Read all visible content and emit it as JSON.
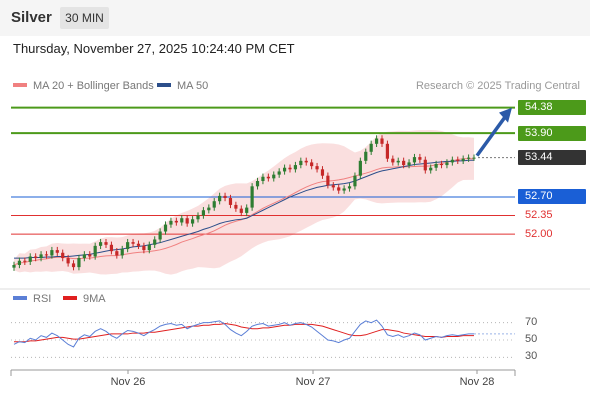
{
  "instrument": "Silver",
  "timeframe": "30 MIN",
  "timestamp": "Thursday, November 27, 2025 10:24:40 PM CET",
  "credit": "Research © 2025 Trading Central",
  "legend": {
    "ma20": {
      "label": "MA 20 + Bollinger Bands",
      "color": "#f08080"
    },
    "ma50": {
      "label": "MA 50",
      "color": "#2c4e8a"
    },
    "rsi": {
      "label": "RSI",
      "color": "#5b7fd6"
    },
    "rsi9": {
      "label": "9MA",
      "color": "#e02020"
    }
  },
  "chart_data": [
    {
      "type": "candlestick",
      "x_ticks": [
        "Nov 26",
        "Nov 27",
        "Nov 28"
      ],
      "ylim": [
        51.1,
        54.75
      ],
      "current_price": 53.44,
      "target_arrow_to": 54.38,
      "levels": [
        {
          "value": 54.38,
          "label": "54.38",
          "color": "#4c9a1a",
          "style": "green"
        },
        {
          "value": 53.9,
          "label": "53.90",
          "color": "#4c9a1a",
          "style": "green"
        },
        {
          "value": 53.44,
          "label": "53.44",
          "color": "#333333",
          "style": "current"
        },
        {
          "value": 52.7,
          "label": "52.70",
          "color": "#1a5fd6",
          "style": "blue"
        },
        {
          "value": 52.35,
          "label": "52.35",
          "color": "#e03030",
          "style": "red"
        },
        {
          "value": 52.0,
          "label": "52.00",
          "color": "#e03030",
          "style": "red"
        }
      ],
      "closes": [
        51.42,
        51.5,
        51.48,
        51.58,
        51.55,
        51.62,
        51.6,
        51.7,
        51.65,
        51.55,
        51.45,
        51.38,
        51.55,
        51.62,
        51.58,
        51.78,
        51.85,
        51.8,
        51.68,
        51.6,
        51.72,
        51.85,
        51.82,
        51.78,
        51.7,
        51.8,
        51.9,
        52.05,
        52.18,
        52.25,
        52.22,
        52.3,
        52.2,
        52.28,
        52.35,
        52.45,
        52.5,
        52.62,
        52.72,
        52.68,
        52.55,
        52.48,
        52.4,
        52.5,
        52.9,
        53.0,
        53.08,
        53.05,
        53.12,
        53.18,
        53.25,
        53.22,
        53.3,
        53.38,
        53.35,
        53.28,
        53.22,
        53.1,
        52.92,
        52.88,
        52.82,
        52.86,
        52.9,
        53.1,
        53.38,
        53.55,
        53.7,
        53.8,
        53.7,
        53.42,
        53.35,
        53.38,
        53.3,
        53.35,
        53.45,
        53.4,
        53.2,
        53.25,
        53.32,
        53.3,
        53.35,
        53.4,
        53.38,
        53.42,
        53.44,
        53.44
      ],
      "ma50": [
        51.55,
        51.55,
        51.55,
        51.56,
        51.56,
        51.56,
        51.57,
        51.57,
        51.58,
        51.58,
        51.58,
        51.59,
        51.6,
        51.61,
        51.62,
        51.64,
        51.66,
        51.68,
        51.7,
        51.71,
        51.72,
        51.74,
        51.76,
        51.77,
        51.78,
        51.8,
        51.82,
        51.84,
        51.87,
        51.9,
        51.93,
        51.96,
        51.99,
        52.02,
        52.05,
        52.09,
        52.12,
        52.16,
        52.2,
        52.23,
        52.25,
        52.27,
        52.28,
        52.3,
        52.35,
        52.4,
        52.45,
        52.5,
        52.55,
        52.6,
        52.65,
        52.7,
        52.74,
        52.78,
        52.82,
        52.85,
        52.88,
        52.9,
        52.92,
        52.93,
        52.94,
        52.95,
        52.97,
        53.0,
        53.04,
        53.08,
        53.12,
        53.16,
        53.19,
        53.21,
        53.23,
        53.25,
        53.27,
        53.29,
        53.31,
        53.32,
        53.33,
        53.34,
        53.35,
        53.36,
        53.37,
        53.37,
        53.38,
        53.38,
        53.39,
        53.39
      ],
      "rsi": [
        45,
        48,
        47,
        52,
        50,
        55,
        53,
        58,
        55,
        50,
        45,
        42,
        52,
        56,
        54,
        60,
        63,
        60,
        55,
        52,
        57,
        61,
        60,
        58,
        55,
        59,
        62,
        66,
        68,
        69,
        67,
        68,
        63,
        66,
        68,
        70,
        70,
        71,
        72,
        68,
        62,
        58,
        55,
        60,
        66,
        68,
        69,
        66,
        67,
        68,
        70,
        67,
        69,
        70,
        68,
        65,
        60,
        55,
        50,
        49,
        47,
        50,
        52,
        60,
        68,
        72,
        70,
        73,
        66,
        56,
        54,
        56,
        53,
        55,
        58,
        56,
        50,
        52,
        54,
        53,
        55,
        56,
        55,
        56,
        57,
        57
      ],
      "rsi9": [
        48,
        48,
        48,
        49,
        49,
        50,
        51,
        52,
        53,
        53,
        52,
        51,
        51,
        52,
        53,
        54,
        55,
        56,
        57,
        57,
        57,
        57,
        58,
        58,
        58,
        59,
        59,
        60,
        61,
        62,
        63,
        64,
        65,
        66,
        66,
        67,
        67,
        68,
        68,
        69,
        68,
        67,
        65,
        64,
        63,
        63,
        64,
        64,
        65,
        66,
        67,
        67,
        68,
        68,
        68,
        68,
        67,
        66,
        64,
        62,
        60,
        58,
        56,
        55,
        55,
        56,
        58,
        60,
        62,
        62,
        61,
        60,
        58,
        57,
        56,
        55,
        54,
        54,
        54,
        53,
        54,
        54,
        54,
        55,
        55,
        55
      ],
      "rsi_ticks": [
        "70",
        "50",
        "30"
      ]
    }
  ]
}
